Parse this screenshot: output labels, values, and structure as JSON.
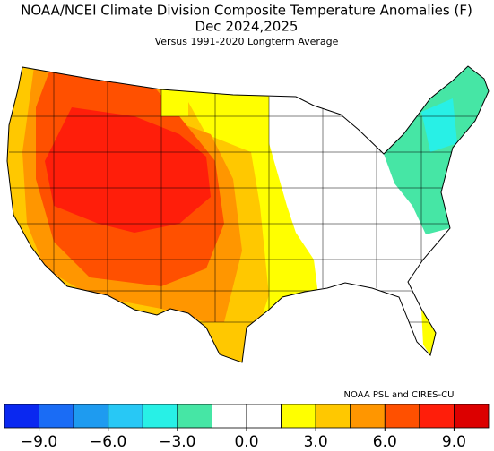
{
  "chart_data": {
    "type": "choropleth-map",
    "title": "NOAA/NCEI Climate Division Composite Temperature Anomalies (F)",
    "period": "Dec  2024,2025",
    "subtitle": "Versus 1991-2020 Longterm Average",
    "credit": "NOAA PSL and CIRES-CU",
    "colorbar": {
      "bounds": [
        -9,
        -7.5,
        -6,
        -4.5,
        -3,
        -1.5,
        0,
        1.5,
        3,
        4.5,
        6,
        7.5,
        9
      ],
      "colors": [
        "#0a28f0",
        "#1a6cf5",
        "#1e9bf0",
        "#28c8f5",
        "#28f0e6",
        "#46e6a5",
        "#ffffff",
        "#ffffff",
        "#ffff00",
        "#ffc800",
        "#ff9600",
        "#ff5000",
        "#ff1e0a",
        "#dc0000"
      ],
      "ticks": [
        {
          "value": -9,
          "label": "−9.0"
        },
        {
          "value": -6,
          "label": "−6.0"
        },
        {
          "value": -3,
          "label": "−3.0"
        },
        {
          "value": 0,
          "label": "0.0"
        },
        {
          "value": 3,
          "label": "3.0"
        },
        {
          "value": 6,
          "label": "6.0"
        },
        {
          "value": 9,
          "label": "9.0"
        }
      ]
    }
  }
}
